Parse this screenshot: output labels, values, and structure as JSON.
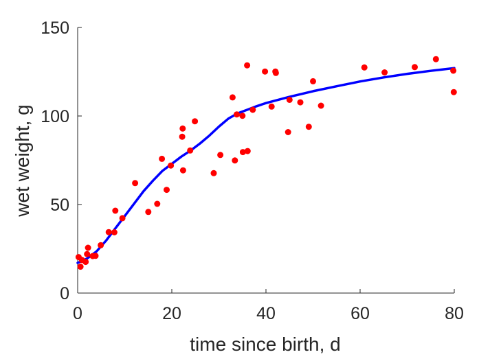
{
  "chart_data": {
    "type": "scatter",
    "xlabel": "time since birth, d",
    "ylabel": "wet weight, g",
    "xlim": [
      0,
      80
    ],
    "ylim": [
      0,
      150
    ],
    "xticks": [
      0,
      20,
      40,
      60,
      80
    ],
    "yticks": [
      0,
      50,
      100,
      150
    ],
    "xtick_labels": [
      "0",
      "20",
      "40",
      "60",
      "80"
    ],
    "ytick_labels": [
      "0",
      "50",
      "100",
      "150"
    ],
    "grid": false,
    "legend": "none",
    "series": [
      {
        "kind": "points",
        "color": "#ff0000",
        "x": [
          0.2,
          0.6,
          0.9,
          1.7,
          2.0,
          2.2,
          3.2,
          3.8,
          4.9,
          6.6,
          7.8,
          8.0,
          9.5,
          12.2,
          15.0,
          16.9,
          17.9,
          18.9,
          19.8,
          22.2,
          22.3,
          22.4,
          23.9,
          24.9,
          28.9,
          30.3,
          32.9,
          33.4,
          33.8,
          35.0,
          35.1,
          36.0,
          36.1,
          37.2,
          39.8,
          41.2,
          42.0,
          42.1,
          44.7,
          45.0,
          47.3,
          49.1,
          50.0,
          51.7,
          60.9,
          65.2,
          71.6,
          76.1,
          79.8,
          79.9
        ],
        "y": [
          20.3,
          14.9,
          18.7,
          17.6,
          22.0,
          25.6,
          20.9,
          21.0,
          27.0,
          34.4,
          34.3,
          46.5,
          42.3,
          62.1,
          45.8,
          50.4,
          75.8,
          58.3,
          72.0,
          88.3,
          92.9,
          69.3,
          80.5,
          97.0,
          67.7,
          78.0,
          110.5,
          74.9,
          100.9,
          100.1,
          79.6,
          128.6,
          80.2,
          103.5,
          125.1,
          105.3,
          125.1,
          124.3,
          90.9,
          109.1,
          107.7,
          93.9,
          119.6,
          105.8,
          127.4,
          124.6,
          127.6,
          132.1,
          125.6,
          113.5
        ]
      },
      {
        "kind": "line",
        "color": "#0000ff",
        "x": [
          0,
          2,
          4,
          6,
          8,
          10,
          12,
          14,
          16,
          18,
          20,
          22,
          24,
          26,
          28,
          30,
          32,
          34,
          36,
          38,
          40,
          45,
          50,
          55,
          60,
          65,
          70,
          75,
          80
        ],
        "y": [
          17,
          19.5,
          23.5,
          29.5,
          36.5,
          43.5,
          50.5,
          57.5,
          63.5,
          69,
          73,
          77,
          80.5,
          84.5,
          89,
          94,
          98.5,
          101.5,
          103.5,
          105.5,
          107.3,
          110.8,
          114,
          116.8,
          119.5,
          121.8,
          123.8,
          125.5,
          127
        ]
      }
    ]
  }
}
